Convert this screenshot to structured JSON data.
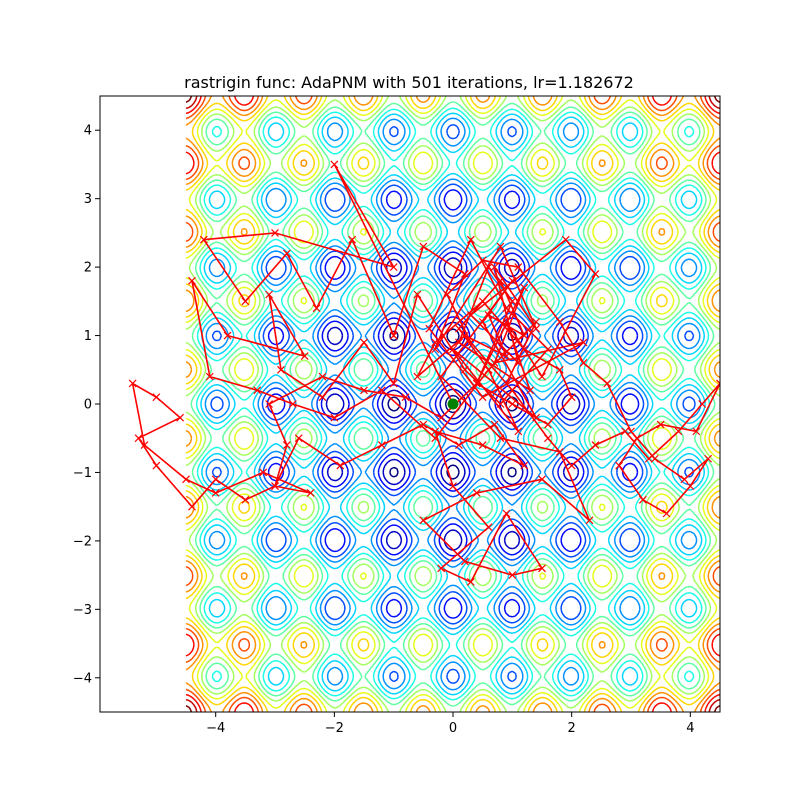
{
  "chart_data": {
    "type": "line",
    "title": "rastrigin func: AdaPNM with 501 iterations, lr=1.182672",
    "xlabel": "",
    "ylabel": "",
    "xlim": [
      -5.95,
      4.5
    ],
    "ylim": [
      -4.5,
      4.5
    ],
    "xticks": [
      -4,
      -2,
      0,
      2,
      4
    ],
    "yticks": [
      -4,
      -3,
      -2,
      -1,
      0,
      1,
      2,
      3,
      4
    ],
    "xtick_labels": [
      "−4",
      "−2",
      "0",
      "2",
      "4"
    ],
    "ytick_labels": [
      "−4",
      "−3",
      "−2",
      "−1",
      "0",
      "1",
      "2",
      "3",
      "4"
    ],
    "contour": {
      "function": "rastrigin",
      "x_range": [
        -4.5,
        4.5
      ],
      "y_range": [
        -4.5,
        4.5
      ],
      "colormap": "jet"
    },
    "series": [
      {
        "color": "#ff0000",
        "marker": "x",
        "x": [
          0.0,
          -2.0,
          -1.0,
          -3.0,
          -4.2,
          -3.5,
          -2.8,
          -2.3,
          -1.7,
          -1.0,
          -0.5,
          0.2,
          -0.3,
          0.8,
          1.4,
          0.7,
          1.1,
          0.3,
          1.9,
          2.4,
          1.5,
          0.9,
          1.3,
          0.1,
          0.6,
          1.0,
          0.4,
          1.2,
          0.7,
          2.2,
          0.5,
          -0.4,
          0.3,
          0.9,
          1.6,
          0.8,
          0.2,
          -0.6,
          -1.0,
          -1.5,
          -2.2,
          -2.9,
          -3.1,
          -2.5,
          -3.8,
          -4.4,
          -4.1,
          -3.3,
          -2.7,
          -2.0,
          -1.2,
          -0.3,
          0.6,
          1.1,
          0.0,
          1.4,
          0.5,
          1.0,
          -0.2,
          0.8,
          1.8,
          2.3,
          1.5,
          0.4,
          -0.5,
          0.2,
          1.0,
          1.5,
          0.9,
          0.3,
          -0.2,
          0.6,
          0.0,
          -0.3,
          0.5,
          1.2,
          0.7,
          0.1,
          -0.5,
          -1.2,
          -1.9,
          -2.6,
          -3.0,
          -2.4,
          -3.2,
          -4.0,
          -4.5,
          -5.2,
          -5.4,
          -5.0,
          -4.6,
          -5.3,
          -5.0,
          -4.4,
          -4.0,
          -3.5,
          -3.0,
          -2.8,
          -3.1,
          -2.2,
          -1.5,
          -0.8,
          -0.2,
          0.4,
          1.0,
          1.6,
          2.0,
          1.8,
          1.2,
          0.5,
          -0.3,
          -0.6,
          0.2,
          0.9,
          0.6,
          1.2,
          0.8,
          0.1,
          0.6,
          1.4,
          0.9,
          0.3,
          -0.1,
          0.5,
          1.1,
          1.8,
          2.2,
          2.6,
          3.0,
          3.4,
          3.9,
          4.3,
          4.0,
          3.6,
          3.2,
          2.8,
          3.1,
          3.5,
          4.1,
          4.5,
          4.2,
          3.8,
          3.3,
          2.9,
          2.4,
          2.0,
          1.6,
          1.0,
          0.3
        ],
        "y": [
          0.0,
          3.5,
          2.0,
          2.5,
          2.4,
          1.5,
          2.2,
          1.4,
          2.4,
          1.0,
          2.3,
          1.9,
          0.8,
          2.3,
          1.1,
          2.0,
          0.6,
          1.3,
          2.4,
          1.9,
          0.4,
          1.2,
          0.2,
          0.9,
          2.0,
          1.5,
          0.3,
          1.7,
          0.6,
          0.9,
          0.1,
          1.1,
          2.4,
          1.4,
          0.8,
          0.0,
          0.5,
          1.6,
          0.3,
          0.9,
          0.1,
          0.5,
          1.6,
          0.7,
          1.0,
          1.8,
          0.4,
          0.2,
          0.0,
          -0.2,
          0.2,
          -0.5,
          0.5,
          -0.4,
          0.8,
          -0.2,
          1.2,
          1.8,
          0.4,
          -0.5,
          -0.7,
          -1.7,
          -1.1,
          -1.3,
          -1.7,
          -2.3,
          -2.5,
          -2.4,
          -1.6,
          -2.6,
          -2.4,
          -1.8,
          -1.2,
          -0.4,
          -0.6,
          -0.9,
          -0.3,
          -0.6,
          -0.3,
          -0.6,
          -0.9,
          -0.5,
          -1.2,
          -1.3,
          -1.0,
          -1.3,
          -1.1,
          -0.6,
          0.3,
          0.1,
          -0.2,
          -0.5,
          -0.9,
          -1.5,
          -1.1,
          -1.4,
          -1.2,
          -0.6,
          0.0,
          0.4,
          0.2,
          0.1,
          -0.2,
          0.3,
          0.0,
          -0.3,
          0.1,
          0.5,
          0.8,
          1.5,
          0.9,
          0.4,
          1.0,
          0.7,
          1.3,
          1.0,
          1.8,
          1.1,
          0.5,
          1.2,
          0.3,
          0.9,
          1.6,
          2.1,
          2.0,
          1.2,
          0.6,
          0.3,
          -0.4,
          -0.8,
          -1.1,
          -0.8,
          -1.2,
          -1.6,
          -1.4,
          -0.9,
          -0.5,
          -0.3,
          -0.4,
          0.3,
          0.0,
          -0.4,
          -0.8,
          -0.4,
          -0.6,
          -0.9,
          -0.5,
          0.2,
          0.9
        ]
      }
    ],
    "start_point": {
      "x": 0.0,
      "y": 0.0,
      "color": "#008000"
    }
  }
}
